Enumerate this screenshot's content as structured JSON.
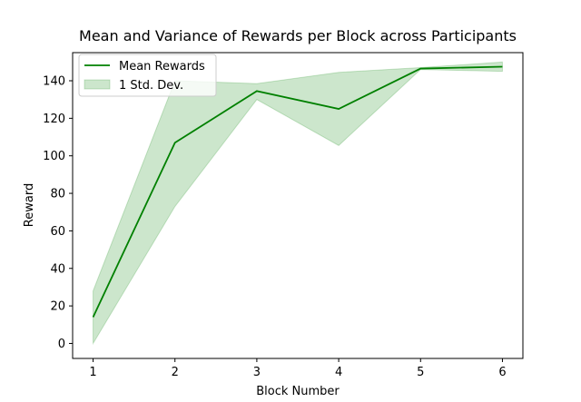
{
  "chart_data": {
    "type": "line",
    "title": "Mean and Variance of Rewards per Block across Participants",
    "xlabel": "Block Number",
    "ylabel": "Reward",
    "x": [
      1,
      2,
      3,
      4,
      5,
      6
    ],
    "xticks": [
      "1",
      "2",
      "3",
      "4",
      "5",
      "6"
    ],
    "yticks": [
      "0",
      "20",
      "40",
      "60",
      "80",
      "100",
      "120",
      "140"
    ],
    "xlim": [
      0.75,
      6.25
    ],
    "ylim": [
      -8,
      155
    ],
    "grid": false,
    "legend_position": "upper-left",
    "series": [
      {
        "name": "Mean Rewards",
        "kind": "line",
        "values": [
          14,
          107,
          134.5,
          125,
          146.5,
          147.5
        ],
        "color": "#008000"
      },
      {
        "name": "1 Std. Dev.",
        "kind": "band",
        "lower": [
          0,
          73,
          130,
          105.5,
          146,
          145
        ],
        "upper": [
          28,
          140,
          138.5,
          144.5,
          147,
          150
        ],
        "color": "#008000",
        "opacity": 0.2
      }
    ]
  }
}
